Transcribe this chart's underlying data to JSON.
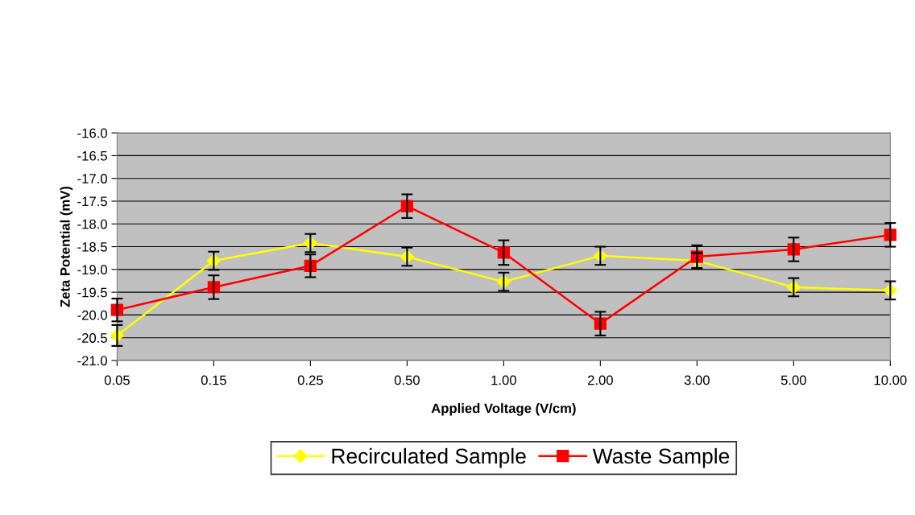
{
  "chart_data": {
    "type": "line",
    "xlabel": "Applied Voltage (V/cm)",
    "ylabel": "Zeta Potential (mV)",
    "categories": [
      "0.05",
      "0.15",
      "0.25",
      "0.50",
      "1.00",
      "2.00",
      "3.00",
      "5.00",
      "10.00"
    ],
    "series": [
      {
        "name": "Recirculated Sample",
        "color": "#ffff00",
        "marker": "diamond",
        "values": [
          -20.45,
          -18.81,
          -18.42,
          -18.72,
          -19.27,
          -18.7,
          -18.81,
          -19.39,
          -19.46
        ],
        "errors": [
          0.23,
          0.2,
          0.2,
          0.2,
          0.2,
          0.2,
          0.17,
          0.2,
          0.2
        ]
      },
      {
        "name": "Waste Sample",
        "color": "#ff0000",
        "marker": "square",
        "values": [
          -19.89,
          -19.39,
          -18.92,
          -17.61,
          -18.63,
          -20.19,
          -18.72,
          -18.56,
          -18.24
        ],
        "errors": [
          0.25,
          0.26,
          0.25,
          0.26,
          0.27,
          0.26,
          0.25,
          0.26,
          0.26
        ]
      }
    ],
    "ylim": [
      -21,
      -16
    ],
    "yticks": [
      {
        "value": -21,
        "label": "-21.0"
      },
      {
        "value": -20.5,
        "label": "-20.5"
      },
      {
        "value": -20,
        "label": "-20.0"
      },
      {
        "value": -19.5,
        "label": "-19.5"
      },
      {
        "value": -19,
        "label": "-19.0"
      },
      {
        "value": -18.5,
        "label": "-18.5"
      },
      {
        "value": -18,
        "label": "-18.0"
      },
      {
        "value": -17.5,
        "label": "-17.5"
      },
      {
        "value": -17,
        "label": "-17.0"
      },
      {
        "value": -16.5,
        "label": "-16.5"
      },
      {
        "value": -16,
        "label": "-16.0"
      }
    ],
    "grid": "y",
    "legend": "bottom",
    "line_style": "solid"
  }
}
